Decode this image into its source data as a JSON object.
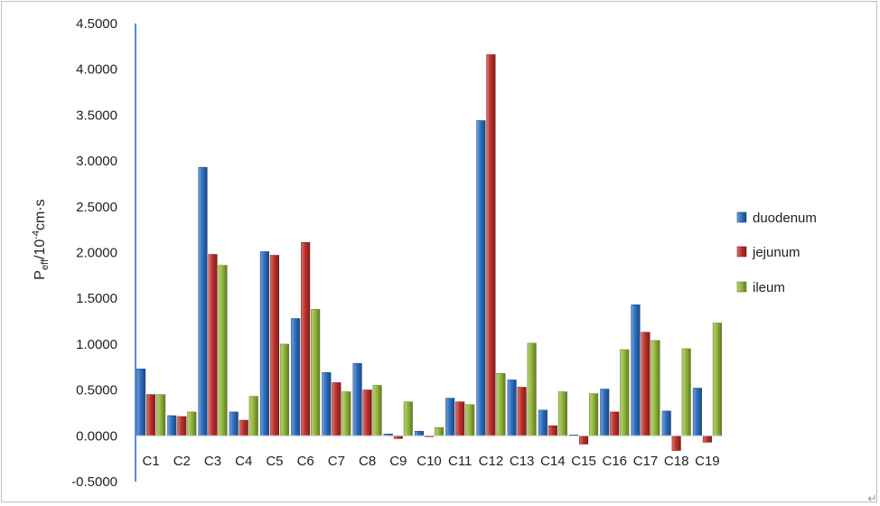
{
  "chart_data": {
    "type": "bar",
    "ylabel": "Peff/10-4cm·s",
    "ylabel_parts": {
      "main": "P",
      "sub": "eff",
      "rest1": "/10",
      "sup": "-4",
      "rest2": "cm·s"
    },
    "ylim": [
      -0.5,
      4.5
    ],
    "ytick_step": 0.5,
    "ytick_labels": [
      "-0.5000",
      "0.0000",
      "0.5000",
      "1.0000",
      "1.5000",
      "2.0000",
      "2.5000",
      "3.0000",
      "3.5000",
      "4.0000",
      "4.5000"
    ],
    "grid": false,
    "legend_position": "right",
    "categories": [
      "C1",
      "C2",
      "C3",
      "C4",
      "C5",
      "C6",
      "C7",
      "C8",
      "C9",
      "C10",
      "C11",
      "C12",
      "C13",
      "C14",
      "C15",
      "C16",
      "C17",
      "C18",
      "C19"
    ],
    "series": [
      {
        "name": "duodenum",
        "color": "#2e6fc2",
        "values": [
          0.73,
          0.22,
          2.93,
          0.26,
          2.01,
          1.28,
          0.69,
          0.79,
          0.02,
          0.05,
          0.41,
          3.44,
          0.61,
          0.28,
          0.01,
          0.51,
          1.43,
          0.27,
          0.52
        ]
      },
      {
        "name": "jejunum",
        "color": "#c0302b",
        "values": [
          0.45,
          0.21,
          1.98,
          0.17,
          1.97,
          2.11,
          0.58,
          0.5,
          -0.03,
          -0.01,
          0.37,
          4.16,
          0.53,
          0.11,
          -0.09,
          0.26,
          1.13,
          -0.16,
          -0.07
        ]
      },
      {
        "name": "ileum",
        "color": "#93b83a",
        "values": [
          0.45,
          0.26,
          1.86,
          0.43,
          1.0,
          1.38,
          0.48,
          0.55,
          0.37,
          0.09,
          0.34,
          0.68,
          1.01,
          0.48,
          0.46,
          0.94,
          1.04,
          0.95,
          1.23
        ]
      }
    ]
  },
  "return_symbol": "↵"
}
